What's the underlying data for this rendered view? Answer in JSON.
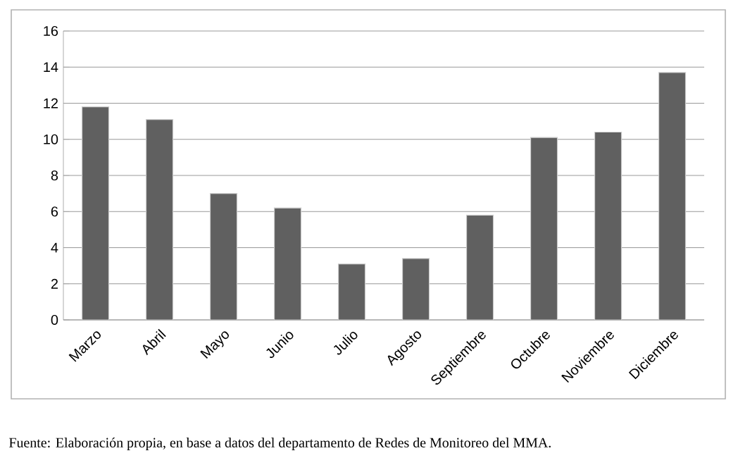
{
  "chart_data": {
    "type": "bar",
    "categories": [
      "Marzo",
      "Abril",
      "Mayo",
      "Junio",
      "Julio",
      "Agosto",
      "Septiembre",
      "Octubre",
      "Noviembre",
      "Diciembre"
    ],
    "values": [
      11.8,
      11.1,
      7.0,
      6.2,
      3.1,
      3.4,
      5.8,
      10.1,
      10.4,
      13.7
    ],
    "color": "#606060",
    "ylim": [
      0,
      16
    ],
    "yticks": [
      0,
      2,
      4,
      6,
      8,
      10,
      12,
      14,
      16
    ],
    "grid": "y",
    "annotations": [
      "Fuente: Elaboración propia, en base a datos del departamento de Redes de Monitoreo del MMA."
    ]
  }
}
